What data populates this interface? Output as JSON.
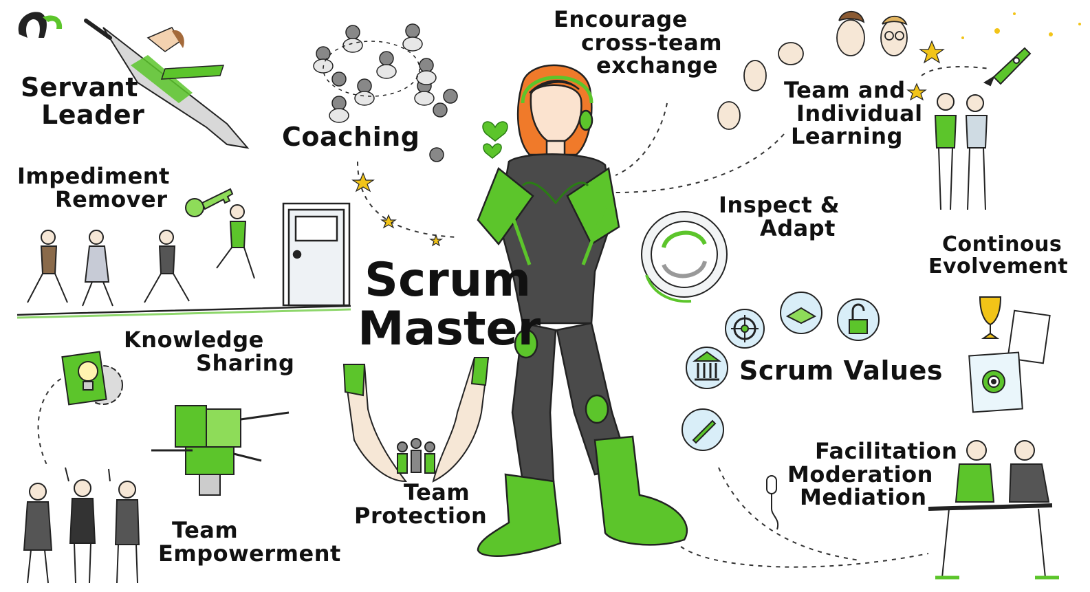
{
  "colors": {
    "accent": "#5cc52b",
    "ink": "#111111",
    "suit": "#4a4a4a",
    "hair": "#f07a2a",
    "star": "#f2c418",
    "badge": "#d9eef8"
  },
  "icons": {
    "logo": "brand-logo-icon",
    "key": "key-icon",
    "door": "door-icon",
    "hearts": "heart-icon",
    "cycle": "cycle-arrows-icon",
    "target": "target-icon",
    "handshake": "handshake-icon",
    "lock": "lock-icon",
    "bank": "bank-icon",
    "rocket": "rocket-icon",
    "trophy": "trophy-icon",
    "microphone": "microphone-icon",
    "lightbulb": "lightbulb-gear-icon",
    "puzzle": "puzzle-hands-icon"
  },
  "labels": {
    "servant": [
      "Servant",
      "Leader"
    ],
    "coaching": "Coaching",
    "encourage": [
      "Encourage",
      "cross-team",
      "exchange"
    ],
    "learning": [
      "Team and",
      "Individual",
      "Learning"
    ],
    "impediment": [
      "Impediment",
      "Remover"
    ],
    "title": [
      "Scrum",
      "Master"
    ],
    "inspect": [
      "Inspect &",
      "Adapt"
    ],
    "continous": [
      "Continous",
      "Evolvement"
    ],
    "knowledge": [
      "Knowledge",
      "Sharing"
    ],
    "scrum_values": "Scrum Values",
    "protection": [
      "Team",
      "Protection"
    ],
    "facilitation": [
      "Facilitation",
      "Moderation",
      "Mediation"
    ],
    "empowerment": [
      "Team",
      "Empowerment"
    ]
  }
}
